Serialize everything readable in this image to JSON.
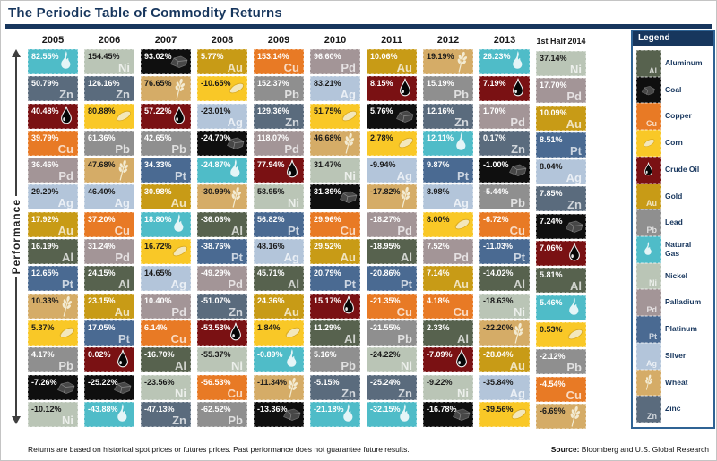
{
  "title": "The Periodic Table of Commodity Returns",
  "y_axis_label": "Performance",
  "legend": {
    "title": "Legend",
    "items": [
      {
        "key": "aluminum"
      },
      {
        "key": "coal"
      },
      {
        "key": "copper"
      },
      {
        "key": "corn"
      },
      {
        "key": "crude_oil"
      },
      {
        "key": "gold"
      },
      {
        "key": "lead"
      },
      {
        "key": "natural_gas"
      },
      {
        "key": "nickel"
      },
      {
        "key": "palladium"
      },
      {
        "key": "platinum"
      },
      {
        "key": "silver"
      },
      {
        "key": "wheat"
      },
      {
        "key": "zinc"
      }
    ]
  },
  "commodities": {
    "aluminum": {
      "label": "Aluminum",
      "symbol": "Al",
      "icon": null,
      "color": "#57624e",
      "text_color": "#ffffff"
    },
    "coal": {
      "label": "Coal",
      "symbol": null,
      "icon": "coal-icon",
      "color": "#0f0f0f",
      "text_color": "#ffffff"
    },
    "copper": {
      "label": "Copper",
      "symbol": "Cu",
      "icon": null,
      "color": "#e87a25",
      "text_color": "#ffffff"
    },
    "corn": {
      "label": "Corn",
      "symbol": null,
      "icon": "corn-icon",
      "color": "#f9c827",
      "text_color": "#1a1a1a"
    },
    "crude_oil": {
      "label": "Crude Oil",
      "symbol": null,
      "icon": "oil-drop-icon",
      "color": "#7a1113",
      "text_color": "#ffffff"
    },
    "gold": {
      "label": "Gold",
      "symbol": "Au",
      "icon": null,
      "color": "#c89b16",
      "text_color": "#ffffff"
    },
    "lead": {
      "label": "Lead",
      "symbol": "Pb",
      "icon": null,
      "color": "#8f8f8f",
      "text_color": "#ffffff"
    },
    "natural_gas": {
      "label": "Natural Gas",
      "symbol": null,
      "icon": "flame-icon",
      "color": "#4fbcc8",
      "text_color": "#ffffff"
    },
    "nickel": {
      "label": "Nickel",
      "symbol": "Ni",
      "icon": null,
      "color": "#bac5b6",
      "text_color": "#1a1a1a"
    },
    "palladium": {
      "label": "Palladium",
      "symbol": "Pd",
      "icon": null,
      "color": "#a39597",
      "text_color": "#ffffff"
    },
    "platinum": {
      "label": "Platinum",
      "symbol": "Pt",
      "icon": null,
      "color": "#4a6a92",
      "text_color": "#ffffff"
    },
    "silver": {
      "label": "Silver",
      "symbol": "Ag",
      "icon": null,
      "color": "#b3c5da",
      "text_color": "#1a1a1a"
    },
    "wheat": {
      "label": "Wheat",
      "symbol": null,
      "icon": "wheat-icon",
      "color": "#d5ac67",
      "text_color": "#1a1a1a"
    },
    "zinc": {
      "label": "Zinc",
      "symbol": "Zn",
      "icon": null,
      "color": "#5a6b7d",
      "text_color": "#ffffff"
    }
  },
  "chart_data": {
    "type": "table",
    "title": "The Periodic Table of Commodity Returns",
    "ylabel": "Performance",
    "unit": "percent annual return, ranked best to worst within each year",
    "columns": [
      {
        "year": "2005",
        "cells": [
          {
            "commodity": "natural_gas",
            "value": 82.55
          },
          {
            "commodity": "zinc",
            "value": 50.79
          },
          {
            "commodity": "crude_oil",
            "value": 40.48
          },
          {
            "commodity": "copper",
            "value": 39.79
          },
          {
            "commodity": "palladium",
            "value": 36.46
          },
          {
            "commodity": "silver",
            "value": 29.2
          },
          {
            "commodity": "gold",
            "value": 17.92
          },
          {
            "commodity": "aluminum",
            "value": 16.19
          },
          {
            "commodity": "platinum",
            "value": 12.65
          },
          {
            "commodity": "wheat",
            "value": 10.33
          },
          {
            "commodity": "corn",
            "value": 5.37
          },
          {
            "commodity": "lead",
            "value": 4.17
          },
          {
            "commodity": "coal",
            "value": -7.26
          },
          {
            "commodity": "nickel",
            "value": -10.12
          }
        ]
      },
      {
        "year": "2006",
        "cells": [
          {
            "commodity": "nickel",
            "value": 154.45
          },
          {
            "commodity": "zinc",
            "value": 126.16
          },
          {
            "commodity": "corn",
            "value": 80.88
          },
          {
            "commodity": "lead",
            "value": 61.36
          },
          {
            "commodity": "wheat",
            "value": 47.68
          },
          {
            "commodity": "silver",
            "value": 46.4
          },
          {
            "commodity": "copper",
            "value": 37.2
          },
          {
            "commodity": "palladium",
            "value": 31.24
          },
          {
            "commodity": "aluminum",
            "value": 24.15
          },
          {
            "commodity": "gold",
            "value": 23.15
          },
          {
            "commodity": "platinum",
            "value": 17.05
          },
          {
            "commodity": "crude_oil",
            "value": 0.02
          },
          {
            "commodity": "coal",
            "value": -25.22
          },
          {
            "commodity": "natural_gas",
            "value": -43.88
          }
        ]
      },
      {
        "year": "2007",
        "cells": [
          {
            "commodity": "coal",
            "value": 93.02
          },
          {
            "commodity": "wheat",
            "value": 76.65
          },
          {
            "commodity": "crude_oil",
            "value": 57.22
          },
          {
            "commodity": "lead",
            "value": 42.65
          },
          {
            "commodity": "platinum",
            "value": 34.33
          },
          {
            "commodity": "gold",
            "value": 30.98
          },
          {
            "commodity": "natural_gas",
            "value": 18.8
          },
          {
            "commodity": "corn",
            "value": 16.72
          },
          {
            "commodity": "silver",
            "value": 14.65
          },
          {
            "commodity": "palladium",
            "value": 10.4
          },
          {
            "commodity": "copper",
            "value": 6.14
          },
          {
            "commodity": "aluminum",
            "value": -16.7
          },
          {
            "commodity": "nickel",
            "value": -23.56
          },
          {
            "commodity": "zinc",
            "value": -47.13
          }
        ]
      },
      {
        "year": "2008",
        "cells": [
          {
            "commodity": "gold",
            "value": 5.77
          },
          {
            "commodity": "corn",
            "value": -10.65
          },
          {
            "commodity": "silver",
            "value": -23.01
          },
          {
            "commodity": "coal",
            "value": -24.7
          },
          {
            "commodity": "natural_gas",
            "value": -24.87
          },
          {
            "commodity": "wheat",
            "value": -30.99
          },
          {
            "commodity": "aluminum",
            "value": -36.06
          },
          {
            "commodity": "platinum",
            "value": -38.76
          },
          {
            "commodity": "palladium",
            "value": -49.29
          },
          {
            "commodity": "zinc",
            "value": -51.07
          },
          {
            "commodity": "crude_oil",
            "value": -53.53
          },
          {
            "commodity": "nickel",
            "value": -55.37
          },
          {
            "commodity": "copper",
            "value": -56.53
          },
          {
            "commodity": "lead",
            "value": -62.52
          }
        ]
      },
      {
        "year": "2009",
        "cells": [
          {
            "commodity": "copper",
            "value": 153.14
          },
          {
            "commodity": "lead",
            "value": 152.37
          },
          {
            "commodity": "zinc",
            "value": 129.36
          },
          {
            "commodity": "palladium",
            "value": 118.07
          },
          {
            "commodity": "crude_oil",
            "value": 77.94
          },
          {
            "commodity": "nickel",
            "value": 58.95
          },
          {
            "commodity": "platinum",
            "value": 56.82
          },
          {
            "commodity": "silver",
            "value": 48.16
          },
          {
            "commodity": "aluminum",
            "value": 45.71
          },
          {
            "commodity": "gold",
            "value": 24.36
          },
          {
            "commodity": "corn",
            "value": 1.84
          },
          {
            "commodity": "natural_gas",
            "value": -0.89
          },
          {
            "commodity": "wheat",
            "value": -11.34
          },
          {
            "commodity": "coal",
            "value": -13.36
          }
        ]
      },
      {
        "year": "2010",
        "cells": [
          {
            "commodity": "palladium",
            "value": 96.6
          },
          {
            "commodity": "silver",
            "value": 83.21
          },
          {
            "commodity": "corn",
            "value": 51.75
          },
          {
            "commodity": "wheat",
            "value": 46.68
          },
          {
            "commodity": "nickel",
            "value": 31.47
          },
          {
            "commodity": "coal",
            "value": 31.39
          },
          {
            "commodity": "copper",
            "value": 29.96
          },
          {
            "commodity": "gold",
            "value": 29.52
          },
          {
            "commodity": "platinum",
            "value": 20.79
          },
          {
            "commodity": "crude_oil",
            "value": 15.17
          },
          {
            "commodity": "aluminum",
            "value": 11.29
          },
          {
            "commodity": "lead",
            "value": 5.16
          },
          {
            "commodity": "zinc",
            "value": -5.15
          },
          {
            "commodity": "natural_gas",
            "value": -21.18
          }
        ]
      },
      {
        "year": "2011",
        "cells": [
          {
            "commodity": "gold",
            "value": 10.06
          },
          {
            "commodity": "crude_oil",
            "value": 8.15
          },
          {
            "commodity": "coal",
            "value": 5.76
          },
          {
            "commodity": "corn",
            "value": 2.78
          },
          {
            "commodity": "silver",
            "value": -9.94
          },
          {
            "commodity": "wheat",
            "value": -17.82
          },
          {
            "commodity": "palladium",
            "value": -18.27
          },
          {
            "commodity": "aluminum",
            "value": -18.95
          },
          {
            "commodity": "platinum",
            "value": -20.86
          },
          {
            "commodity": "copper",
            "value": -21.35
          },
          {
            "commodity": "lead",
            "value": -21.55
          },
          {
            "commodity": "nickel",
            "value": -24.22
          },
          {
            "commodity": "zinc",
            "value": -25.24
          },
          {
            "commodity": "natural_gas",
            "value": -32.15
          }
        ]
      },
      {
        "year": "2012",
        "cells": [
          {
            "commodity": "wheat",
            "value": 19.19
          },
          {
            "commodity": "lead",
            "value": 15.19
          },
          {
            "commodity": "zinc",
            "value": 12.16
          },
          {
            "commodity": "natural_gas",
            "value": 12.11
          },
          {
            "commodity": "platinum",
            "value": 9.87
          },
          {
            "commodity": "silver",
            "value": 8.98
          },
          {
            "commodity": "corn",
            "value": 8.0
          },
          {
            "commodity": "palladium",
            "value": 7.52
          },
          {
            "commodity": "gold",
            "value": 7.14
          },
          {
            "commodity": "copper",
            "value": 4.18
          },
          {
            "commodity": "aluminum",
            "value": 2.33
          },
          {
            "commodity": "crude_oil",
            "value": -7.09
          },
          {
            "commodity": "nickel",
            "value": -9.22
          },
          {
            "commodity": "coal",
            "value": -16.78
          }
        ]
      },
      {
        "year": "2013",
        "cells": [
          {
            "commodity": "natural_gas",
            "value": 26.23
          },
          {
            "commodity": "crude_oil",
            "value": 7.19
          },
          {
            "commodity": "palladium",
            "value": 1.7
          },
          {
            "commodity": "zinc",
            "value": 0.17
          },
          {
            "commodity": "coal",
            "value": -1.0
          },
          {
            "commodity": "lead",
            "value": -5.44
          },
          {
            "commodity": "copper",
            "value": -6.72
          },
          {
            "commodity": "platinum",
            "value": -11.03
          },
          {
            "commodity": "aluminum",
            "value": -14.02
          },
          {
            "commodity": "nickel",
            "value": -18.63
          },
          {
            "commodity": "wheat",
            "value": -22.2
          },
          {
            "commodity": "gold",
            "value": -28.04
          },
          {
            "commodity": "silver",
            "value": -35.84
          },
          {
            "commodity": "corn",
            "value": -39.56
          }
        ]
      },
      {
        "year": "1st Half 2014",
        "cells": [
          {
            "commodity": "nickel",
            "value": 37.14
          },
          {
            "commodity": "palladium",
            "value": 17.7
          },
          {
            "commodity": "gold",
            "value": 10.09
          },
          {
            "commodity": "platinum",
            "value": 8.51
          },
          {
            "commodity": "silver",
            "value": 8.04
          },
          {
            "commodity": "zinc",
            "value": 7.85
          },
          {
            "commodity": "coal",
            "value": 7.24
          },
          {
            "commodity": "crude_oil",
            "value": 7.06
          },
          {
            "commodity": "aluminum",
            "value": 5.81
          },
          {
            "commodity": "natural_gas",
            "value": 5.46
          },
          {
            "commodity": "corn",
            "value": 0.53
          },
          {
            "commodity": "lead",
            "value": -2.12
          },
          {
            "commodity": "copper",
            "value": -4.54
          },
          {
            "commodity": "wheat",
            "value": -6.69
          }
        ]
      }
    ]
  },
  "footer": {
    "note": "Returns are based on historical spot prices or futures prices. Past performance does not guarantee future results.",
    "source_label": "Source:",
    "source_text": " Bloomberg and U.S. Global Research"
  }
}
